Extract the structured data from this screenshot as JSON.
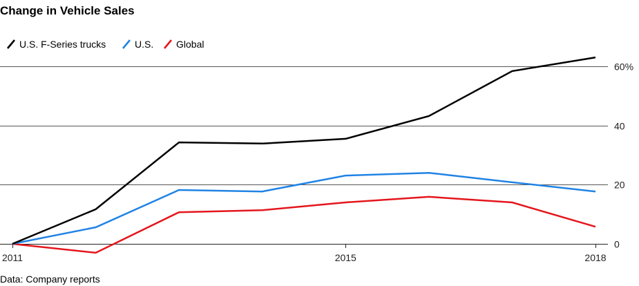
{
  "chart_data": {
    "type": "line",
    "title": "Change in Vehicle Sales",
    "source": "Data: Company reports",
    "x": [
      2011,
      2012,
      2013,
      2014,
      2015,
      2016,
      2017,
      2018
    ],
    "xlim": [
      2011,
      2018
    ],
    "x_ticks": [
      2011,
      2015,
      2018
    ],
    "x_tick_labels": [
      "2011",
      "2015",
      "2018"
    ],
    "y_ticks": [
      0,
      20,
      40,
      60
    ],
    "y_tick_labels": [
      "0",
      "20",
      "40",
      "60%"
    ],
    "ylim": [
      -4,
      64
    ],
    "y_axis_position": "right",
    "grid": true,
    "legend_position": "top-left",
    "series": [
      {
        "name": "U.S. F-Series trucks",
        "color": "#000000",
        "values": [
          0,
          11.7,
          34.3,
          33.9,
          35.5,
          43.2,
          58.4,
          63.0
        ]
      },
      {
        "name": "U.S.",
        "color": "#2083e4",
        "values": [
          0,
          5.6,
          18.2,
          17.7,
          23.1,
          24.0,
          20.8,
          17.7
        ]
      },
      {
        "name": "Global",
        "color": "#e4161c",
        "values": [
          0,
          -3.0,
          10.7,
          11.4,
          14.0,
          15.9,
          14.0,
          5.8
        ]
      }
    ]
  }
}
